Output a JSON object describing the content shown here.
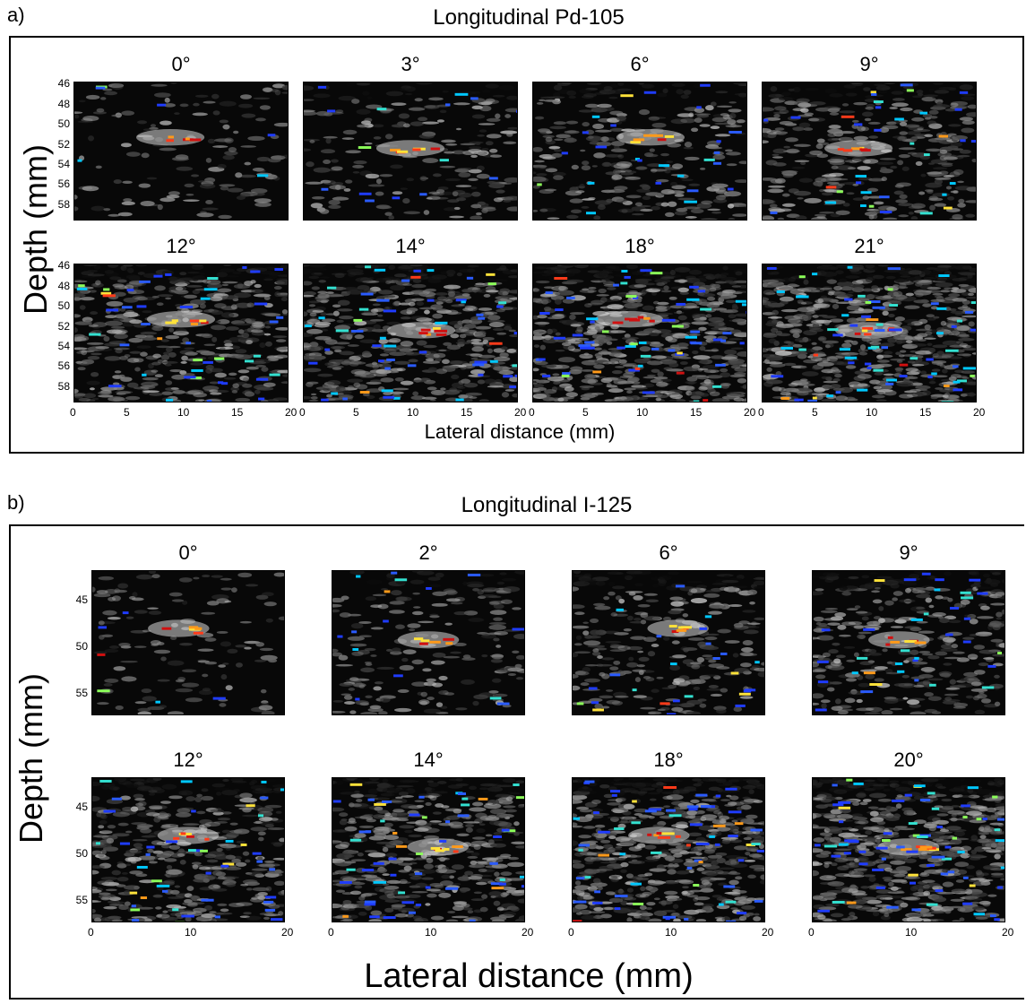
{
  "panel_a": {
    "letter": "a)",
    "title": "Longitudinal Pd-105",
    "y_label": "Depth (mm)",
    "x_label": "Lateral distance (mm)",
    "angles_row1": [
      "0°",
      "3°",
      "6°",
      "9°"
    ],
    "angles_row2": [
      "12°",
      "14°",
      "18°",
      "21°"
    ],
    "y_ticks": [
      "46",
      "48",
      "50",
      "52",
      "54",
      "56",
      "58"
    ],
    "x_ticks": [
      "0",
      "5",
      "10",
      "15",
      "20"
    ]
  },
  "panel_b": {
    "letter": "b)",
    "title": "Longitudinal I-125",
    "y_label": "Depth (mm)",
    "x_label": "Lateral distance (mm)",
    "angles_row1": [
      "0°",
      "2°",
      "6°",
      "9°"
    ],
    "angles_row2": [
      "12°",
      "14°",
      "18°",
      "20°"
    ],
    "y_ticks": [
      "45",
      "50",
      "55"
    ],
    "x_ticks": [
      "0",
      "10",
      "20"
    ]
  }
}
